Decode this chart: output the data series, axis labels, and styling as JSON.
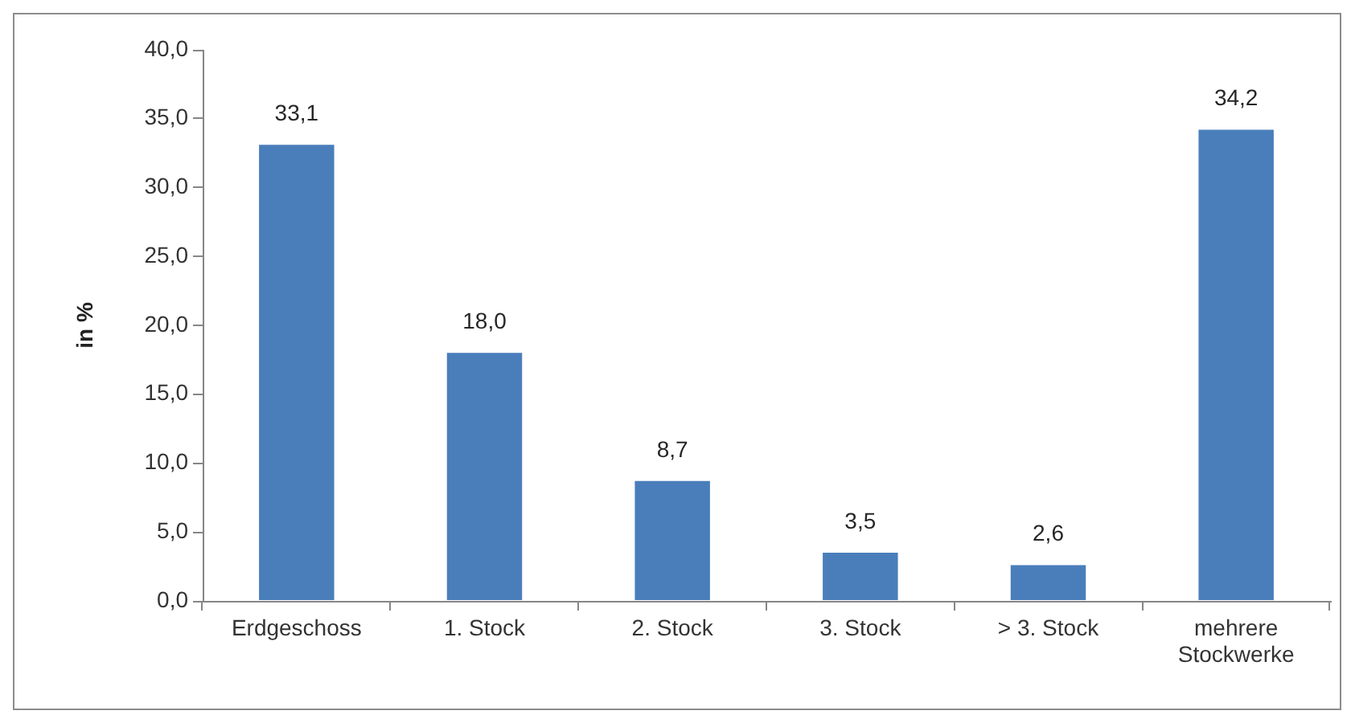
{
  "chart_data": {
    "type": "bar",
    "ylabel": "in %",
    "categories": [
      "Erdgeschoss",
      "1. Stock",
      "2. Stock",
      "3. Stock",
      "> 3. Stock",
      "mehrere Stockwerke"
    ],
    "values": [
      33.1,
      18.0,
      8.7,
      3.5,
      2.6,
      34.2
    ],
    "value_labels": [
      "33,1",
      "18,0",
      "8,7",
      "3,5",
      "2,6",
      "34,2"
    ],
    "color": "#4a7ebb",
    "ylim": [
      0,
      40
    ],
    "yticks": [
      {
        "value": 0,
        "label": "0,0"
      },
      {
        "value": 5,
        "label": "5,0"
      },
      {
        "value": 10,
        "label": "10,0"
      },
      {
        "value": 15,
        "label": "15,0"
      },
      {
        "value": 20,
        "label": "20,0"
      },
      {
        "value": 25,
        "label": "25,0"
      },
      {
        "value": 30,
        "label": "30,0"
      },
      {
        "value": 35,
        "label": "35,0"
      },
      {
        "value": 40,
        "label": "40,0"
      }
    ],
    "grid": false
  }
}
